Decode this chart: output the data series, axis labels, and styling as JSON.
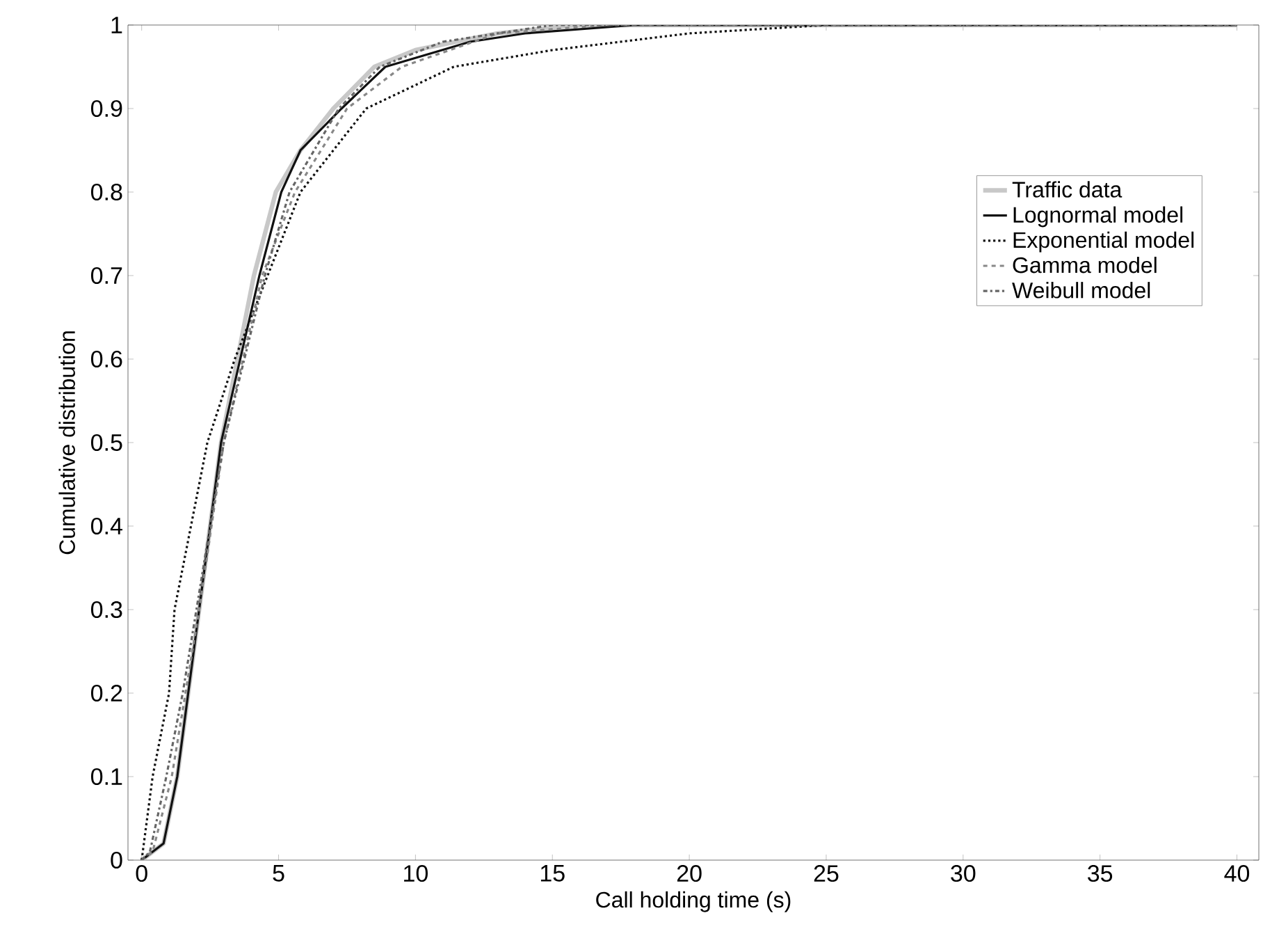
{
  "chart_data": {
    "type": "line",
    "xlabel": "Call holding time (s)",
    "ylabel": "Cumulative distribution",
    "xlim": [
      -0.5,
      40.8
    ],
    "ylim": [
      0,
      1
    ],
    "xticks": [
      0,
      5,
      10,
      15,
      20,
      25,
      30,
      35,
      40
    ],
    "yticks": [
      0,
      0.1,
      0.2,
      0.3,
      0.4,
      0.5,
      0.6,
      0.7,
      0.8,
      0.9,
      1
    ],
    "legend": "top right",
    "grid": false,
    "series": [
      {
        "name": "Traffic data",
        "color": "#c8c8c8",
        "line_style": "solid",
        "x": [
          0,
          0.8,
          1.3,
          2.1,
          2.9,
          4.1,
          4.9,
          5.8,
          7,
          8.5,
          10,
          13,
          16,
          25,
          40
        ],
        "values": [
          0,
          0.02,
          0.1,
          0.3,
          0.5,
          0.7,
          0.8,
          0.85,
          0.9,
          0.95,
          0.97,
          0.99,
          1,
          1,
          1
        ]
      },
      {
        "name": "Lognormal model",
        "color": "#111111",
        "line_style": "solid",
        "x": [
          0,
          0.8,
          1.3,
          2.1,
          2.9,
          4.3,
          5.1,
          5.8,
          7.3,
          8.9,
          12,
          14,
          18,
          25,
          40
        ],
        "values": [
          0,
          0.02,
          0.1,
          0.3,
          0.5,
          0.7,
          0.8,
          0.85,
          0.9,
          0.95,
          0.98,
          0.99,
          1,
          1,
          1
        ]
      },
      {
        "name": "Exponential model",
        "color": "#111111",
        "line_style": "dotted",
        "x": [
          0,
          0.4,
          1,
          1.2,
          1.8,
          2.4,
          3.4,
          4.6,
          5.8,
          7,
          8.2,
          11.4,
          15,
          20,
          25,
          40
        ],
        "values": [
          0,
          0.1,
          0.2,
          0.3,
          0.4,
          0.5,
          0.6,
          0.7,
          0.8,
          0.85,
          0.9,
          0.95,
          0.97,
          0.99,
          1,
          1
        ]
      },
      {
        "name": "Gamma model",
        "color": "#888888",
        "line_style": "dashed",
        "x": [
          0,
          0.4,
          1.1,
          2.1,
          3,
          4.4,
          5.6,
          7.5,
          9.5,
          13,
          17,
          25,
          40
        ],
        "values": [
          0,
          0.01,
          0.1,
          0.3,
          0.5,
          0.7,
          0.8,
          0.9,
          0.95,
          0.99,
          1,
          1,
          1
        ]
      },
      {
        "name": "Weibull model",
        "color": "#666666",
        "line_style": "dashdot",
        "x": [
          0,
          0.3,
          0.9,
          1.5,
          2,
          3,
          4.5,
          5.4,
          7.2,
          8.7,
          11,
          15,
          25,
          40
        ],
        "values": [
          0,
          0.01,
          0.1,
          0.2,
          0.3,
          0.5,
          0.7,
          0.8,
          0.9,
          0.95,
          0.98,
          1,
          1,
          1
        ]
      }
    ]
  }
}
